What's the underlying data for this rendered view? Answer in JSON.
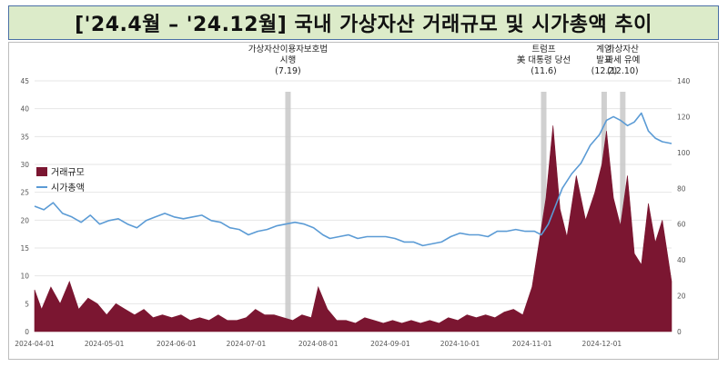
{
  "title": "['24.4월 – '24.12월] 국내 가상자산 거래규모 및 시가총액 추이",
  "colors": {
    "bar": "#7b1631",
    "line": "#5b9bd5",
    "event_band": "#c8c8c8",
    "title_bg": "#dcebc9",
    "title_border": "#4a6fa5"
  },
  "chart_data": {
    "type": "bar+line",
    "left_axis": {
      "ticks": [
        0,
        5,
        10,
        15,
        20,
        25,
        30,
        35,
        40,
        45
      ],
      "ylim": [
        0,
        45
      ]
    },
    "right_axis": {
      "ticks": [
        0,
        20,
        40,
        60,
        80,
        100,
        120,
        140
      ],
      "ylim": [
        0,
        140
      ]
    },
    "x_ticks": [
      "2024-04-01",
      "2024-05-01",
      "2024-06-01",
      "2024-07-01",
      "2024-08-01",
      "2024-09-01",
      "2024-10-01",
      "2024-11-01",
      "2024-12-01"
    ],
    "x_range": [
      "2024-04-01",
      "2024-12-31"
    ],
    "legend": {
      "placement": "upper-left",
      "items": [
        {
          "label": "거래규모",
          "type": "bar"
        },
        {
          "label": "시가총액",
          "type": "line"
        }
      ]
    },
    "events": [
      {
        "date": "2024-07-19",
        "label_lines": [
          "가상자산이용자보호법",
          "시행",
          "(7.19)"
        ]
      },
      {
        "date": "2024-11-06",
        "label_lines": [
          "트럼프",
          "美 대통령 당선",
          "(11.6)"
        ]
      },
      {
        "date": "2024-12-02",
        "label_lines": [
          "계엄",
          "발표",
          "(12.2)"
        ]
      },
      {
        "date": "2024-12-10",
        "label_lines": [
          "가상자산",
          "과세 유예",
          "(12.10)"
        ]
      }
    ],
    "series": [
      {
        "name": "거래규모",
        "axis": "left",
        "kind": "area",
        "x": [
          "2024-04-01",
          "2024-04-04",
          "2024-04-08",
          "2024-04-12",
          "2024-04-16",
          "2024-04-20",
          "2024-04-24",
          "2024-04-28",
          "2024-05-02",
          "2024-05-06",
          "2024-05-10",
          "2024-05-14",
          "2024-05-18",
          "2024-05-22",
          "2024-05-26",
          "2024-05-30",
          "2024-06-03",
          "2024-06-07",
          "2024-06-11",
          "2024-06-15",
          "2024-06-19",
          "2024-06-23",
          "2024-06-27",
          "2024-07-01",
          "2024-07-05",
          "2024-07-09",
          "2024-07-13",
          "2024-07-17",
          "2024-07-21",
          "2024-07-25",
          "2024-07-29",
          "2024-08-01",
          "2024-08-05",
          "2024-08-09",
          "2024-08-13",
          "2024-08-17",
          "2024-08-21",
          "2024-08-25",
          "2024-08-29",
          "2024-09-02",
          "2024-09-06",
          "2024-09-10",
          "2024-09-14",
          "2024-09-18",
          "2024-09-22",
          "2024-09-26",
          "2024-09-30",
          "2024-10-04",
          "2024-10-08",
          "2024-10-12",
          "2024-10-16",
          "2024-10-20",
          "2024-10-24",
          "2024-10-28",
          "2024-11-01",
          "2024-11-04",
          "2024-11-07",
          "2024-11-10",
          "2024-11-13",
          "2024-11-16",
          "2024-11-20",
          "2024-11-24",
          "2024-11-28",
          "2024-12-01",
          "2024-12-03",
          "2024-12-06",
          "2024-12-09",
          "2024-12-12",
          "2024-12-15",
          "2024-12-18",
          "2024-12-21",
          "2024-12-24",
          "2024-12-27",
          "2024-12-31"
        ],
        "values": [
          7.5,
          4,
          8,
          5,
          9,
          4,
          6,
          5,
          3,
          5,
          4,
          3,
          4,
          2.5,
          3,
          2.5,
          3,
          2,
          2.5,
          2,
          3,
          2,
          2,
          2.5,
          4,
          3,
          3,
          2.5,
          2,
          3,
          2.5,
          8,
          4,
          2,
          2,
          1.5,
          2.5,
          2,
          1.5,
          2,
          1.5,
          2,
          1.5,
          2,
          1.5,
          2.5,
          2,
          3,
          2.5,
          3,
          2.5,
          3.5,
          4,
          3,
          8,
          16,
          24,
          37,
          22,
          17,
          28,
          20,
          25,
          30,
          36,
          24,
          19,
          28,
          14,
          12,
          23,
          16,
          20,
          9
        ]
      },
      {
        "name": "시가총액",
        "axis": "right",
        "kind": "line",
        "x": [
          "2024-04-01",
          "2024-04-05",
          "2024-04-09",
          "2024-04-13",
          "2024-04-17",
          "2024-04-21",
          "2024-04-25",
          "2024-04-29",
          "2024-05-03",
          "2024-05-07",
          "2024-05-11",
          "2024-05-15",
          "2024-05-19",
          "2024-05-23",
          "2024-05-27",
          "2024-05-31",
          "2024-06-04",
          "2024-06-08",
          "2024-06-12",
          "2024-06-16",
          "2024-06-20",
          "2024-06-24",
          "2024-06-28",
          "2024-07-02",
          "2024-07-06",
          "2024-07-10",
          "2024-07-14",
          "2024-07-18",
          "2024-07-22",
          "2024-07-26",
          "2024-07-30",
          "2024-08-03",
          "2024-08-06",
          "2024-08-10",
          "2024-08-14",
          "2024-08-18",
          "2024-08-22",
          "2024-08-26",
          "2024-08-30",
          "2024-09-03",
          "2024-09-07",
          "2024-09-11",
          "2024-09-15",
          "2024-09-19",
          "2024-09-23",
          "2024-09-27",
          "2024-10-01",
          "2024-10-05",
          "2024-10-09",
          "2024-10-13",
          "2024-10-17",
          "2024-10-21",
          "2024-10-25",
          "2024-10-29",
          "2024-11-02",
          "2024-11-05",
          "2024-11-08",
          "2024-11-11",
          "2024-11-14",
          "2024-11-18",
          "2024-11-22",
          "2024-11-26",
          "2024-11-30",
          "2024-12-03",
          "2024-12-06",
          "2024-12-09",
          "2024-12-12",
          "2024-12-15",
          "2024-12-18",
          "2024-12-21",
          "2024-12-24",
          "2024-12-27",
          "2024-12-31"
        ],
        "values": [
          70,
          68,
          72,
          66,
          64,
          61,
          65,
          60,
          62,
          63,
          60,
          58,
          62,
          64,
          66,
          64,
          63,
          64,
          65,
          62,
          61,
          58,
          57,
          54,
          56,
          57,
          59,
          60,
          61,
          60,
          58,
          54,
          52,
          53,
          54,
          52,
          53,
          53,
          53,
          52,
          50,
          50,
          48,
          49,
          50,
          53,
          55,
          54,
          54,
          53,
          56,
          56,
          57,
          56,
          56,
          54,
          60,
          70,
          80,
          88,
          94,
          104,
          110,
          118,
          120,
          118,
          115,
          117,
          122,
          112,
          108,
          106,
          105
        ]
      }
    ]
  }
}
